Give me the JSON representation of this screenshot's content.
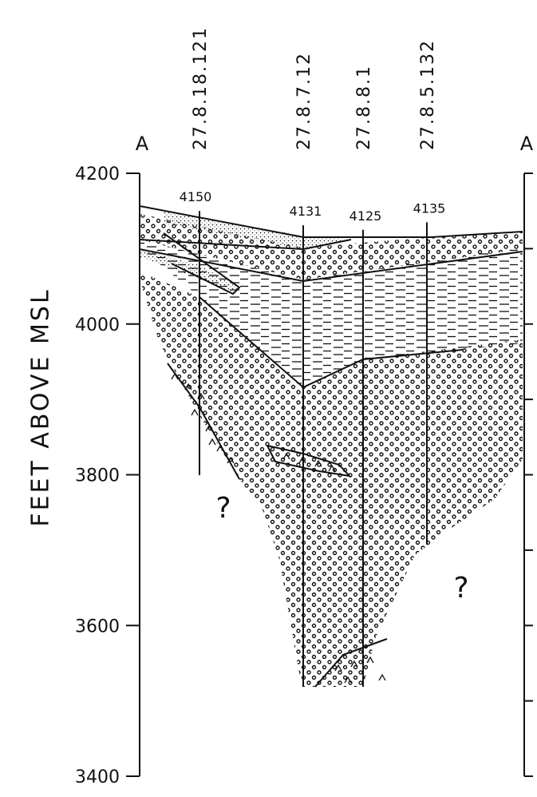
{
  "section": {
    "ends": [
      "A",
      "A"
    ],
    "axis": {
      "label": "FEET ABOVE MSL",
      "ticks": [
        4200,
        4000,
        3800,
        3600,
        3400
      ]
    },
    "wells": [
      {
        "name": "27.8.18.121",
        "elevation": 4150
      },
      {
        "name": "27.8.7.12",
        "elevation": 4131
      },
      {
        "name": "27.8.8.1",
        "elevation": 4125
      },
      {
        "name": "27.8.5.132",
        "elevation": 4135
      }
    ],
    "unknowns": [
      "?",
      "?"
    ]
  }
}
